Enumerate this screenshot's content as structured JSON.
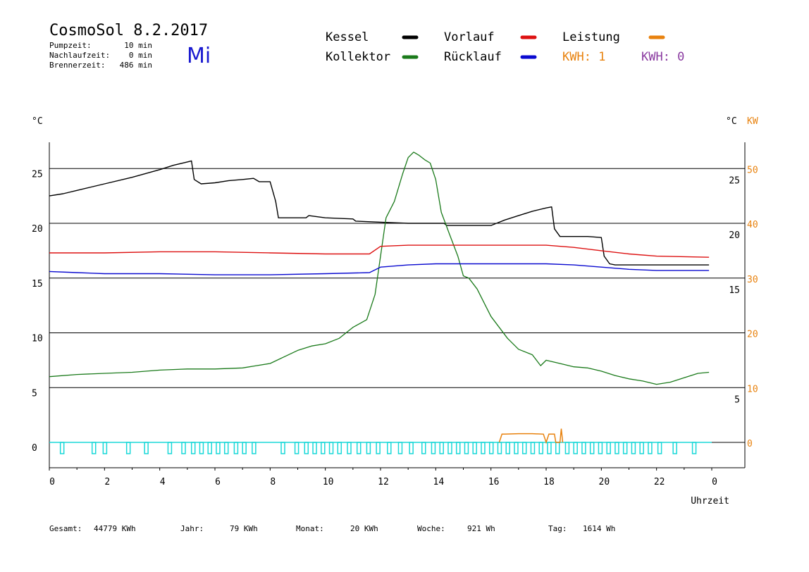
{
  "header": {
    "title": "CosmoSol 8.2.2017",
    "weekday": "Mi",
    "info": [
      {
        "label": "Pumpzeit:",
        "value": "10 min"
      },
      {
        "label": "Nachlaufzeit:",
        "value": "0 min"
      },
      {
        "label": "Brennerzeit:",
        "value": "486 min"
      }
    ]
  },
  "legend": {
    "kessel": "Kessel",
    "kollektor": "Kollektor",
    "vorlauf": "Vorlauf",
    "ruecklauf": "Rücklauf",
    "leistung": "Leistung",
    "kwh1": "KWH: 1",
    "kwh0": "KWH: 0"
  },
  "footer": {
    "gesamt_label": "Gesamt:",
    "gesamt_value": "44779 KWh",
    "jahr_label": "Jahr:",
    "jahr_value": "79 KWh",
    "monat_label": "Monat:",
    "monat_value": "20 KWh",
    "woche_label": "Woche:",
    "woche_value": "921 Wh",
    "tag_label": "Tag:",
    "tag_value": "1614 Wh"
  },
  "colors": {
    "kessel": "#000000",
    "kollektor": "#1a7a1a",
    "vorlauf": "#dd1111",
    "ruecklauf": "#0a0ad0",
    "leistung": "#e8820e",
    "kwh0": "#8a3aa0",
    "pump": "#18d8d8",
    "weekday": "#1a1ad0"
  },
  "chart_data": {
    "type": "line",
    "xlabel": "Uhrzeit",
    "ylabel_left": "°C",
    "ylabel_right": [
      "°C",
      "KW"
    ],
    "xlim": [
      0,
      24
    ],
    "ylim": [
      -2,
      27.5
    ],
    "x_ticks": [
      "0",
      "2",
      "4",
      "6",
      "8",
      "10",
      "12",
      "14",
      "16",
      "18",
      "20",
      "22",
      "0"
    ],
    "y_ticks_left": [
      0,
      5,
      10,
      15,
      20,
      25
    ],
    "y_ticks_right_c": [
      5,
      15,
      20,
      25
    ],
    "y_ticks_right_kw": [
      0,
      10,
      20,
      30,
      40,
      50
    ],
    "hlines": [
      5,
      10,
      15,
      20,
      25
    ],
    "series": [
      {
        "name": "Kessel",
        "x": [
          0,
          0.5,
          1,
          2,
          3,
          4,
          4.5,
          5,
          5.15,
          5.25,
          5.5,
          6,
          6.5,
          7,
          7.4,
          7.6,
          8.0,
          8.2,
          8.3,
          8.6,
          9.3,
          9.4,
          10,
          11,
          11.1,
          12,
          13,
          14.3,
          14.4,
          15,
          16,
          16.2,
          16.5,
          17,
          17.5,
          18,
          18.2,
          18.3,
          18.5,
          19,
          19.5,
          20.0,
          20.1,
          20.3,
          20.5,
          21,
          22,
          23,
          23.9
        ],
        "y": [
          22.5,
          22.7,
          23.0,
          23.6,
          24.2,
          24.9,
          25.3,
          25.6,
          25.7,
          24.0,
          23.6,
          23.7,
          23.9,
          24.0,
          24.1,
          23.8,
          23.8,
          22.0,
          20.5,
          20.5,
          20.5,
          20.7,
          20.5,
          20.4,
          20.2,
          20.1,
          20.0,
          20.0,
          19.8,
          19.8,
          19.8,
          20.0,
          20.3,
          20.7,
          21.1,
          21.4,
          21.5,
          19.5,
          18.8,
          18.8,
          18.8,
          18.7,
          17.0,
          16.3,
          16.2,
          16.2,
          16.2,
          16.2,
          16.2
        ]
      },
      {
        "name": "Kollektor",
        "x": [
          0,
          1,
          2,
          3,
          4,
          5,
          6,
          7,
          7.5,
          8,
          8.5,
          9,
          9.5,
          10,
          10.5,
          11,
          11.5,
          11.8,
          12.0,
          12.2,
          12.5,
          12.8,
          13.0,
          13.2,
          13.4,
          13.6,
          13.8,
          14.0,
          14.2,
          14.5,
          14.8,
          15.0,
          15.2,
          15.5,
          15.8,
          16.0,
          16.3,
          16.6,
          17.0,
          17.5,
          17.8,
          18.0,
          18.5,
          19,
          19.5,
          20,
          20.5,
          21,
          21.5,
          22,
          22.5,
          23,
          23.5,
          23.9
        ],
        "y": [
          6.0,
          6.2,
          6.3,
          6.4,
          6.6,
          6.7,
          6.7,
          6.8,
          7.0,
          7.2,
          7.8,
          8.4,
          8.8,
          9.0,
          9.5,
          10.5,
          11.2,
          13.5,
          17.0,
          20.5,
          22.0,
          24.5,
          26.0,
          26.5,
          26.2,
          25.8,
          25.5,
          24.0,
          21.0,
          19.0,
          17.0,
          15.2,
          15.0,
          14.0,
          12.5,
          11.5,
          10.5,
          9.5,
          8.5,
          8.0,
          7.0,
          7.5,
          7.2,
          6.9,
          6.8,
          6.5,
          6.1,
          5.8,
          5.6,
          5.3,
          5.5,
          5.9,
          6.3,
          6.4
        ]
      },
      {
        "name": "Vorlauf",
        "x": [
          0,
          2,
          4,
          6,
          8,
          10,
          11.6,
          12,
          13,
          14,
          16,
          18,
          19,
          20,
          21,
          22,
          23.9
        ],
        "y": [
          17.3,
          17.3,
          17.4,
          17.4,
          17.3,
          17.2,
          17.2,
          17.9,
          18.0,
          18.0,
          18.0,
          18.0,
          17.8,
          17.5,
          17.2,
          17.0,
          16.9
        ]
      },
      {
        "name": "Rücklauf",
        "x": [
          0,
          1,
          2,
          4,
          6,
          8,
          10,
          11.6,
          12,
          13,
          14,
          16,
          18,
          19,
          20,
          21,
          22,
          23.9
        ],
        "y": [
          15.6,
          15.5,
          15.4,
          15.4,
          15.3,
          15.3,
          15.4,
          15.5,
          16.0,
          16.2,
          16.3,
          16.3,
          16.3,
          16.2,
          16.0,
          15.8,
          15.7,
          15.7
        ]
      }
    ],
    "leistung_kw": {
      "x": [
        16.3,
        16.4,
        16.5,
        17,
        17.5,
        17.9,
        18.0,
        18.1,
        18.3,
        18.35,
        18.5,
        18.55,
        18.6
      ],
      "y": [
        0,
        1.5,
        1.5,
        1.6,
        1.6,
        1.5,
        0,
        1.5,
        1.5,
        0,
        0,
        2.5,
        0
      ]
    },
    "pump_on_hours": [
      0.4,
      1.55,
      1.95,
      2.8,
      3.45,
      4.3,
      4.8,
      5.15,
      5.45,
      5.75,
      6.05,
      6.35,
      6.7,
      7.0,
      7.35,
      8.4,
      8.9,
      9.25,
      9.55,
      9.85,
      10.15,
      10.45,
      10.8,
      11.15,
      11.5,
      11.85,
      12.25,
      12.65,
      13.05,
      13.5,
      13.85,
      14.15,
      14.45,
      14.75,
      15.05,
      15.35,
      15.65,
      15.95,
      16.25,
      16.55,
      16.85,
      17.15,
      17.45,
      17.75,
      18.05,
      18.35,
      18.7,
      19.0,
      19.3,
      19.6,
      19.9,
      20.2,
      20.5,
      20.8,
      21.1,
      21.4,
      21.7,
      22.05,
      22.6,
      23.3
    ],
    "ticks_secondary_label": "KW"
  }
}
